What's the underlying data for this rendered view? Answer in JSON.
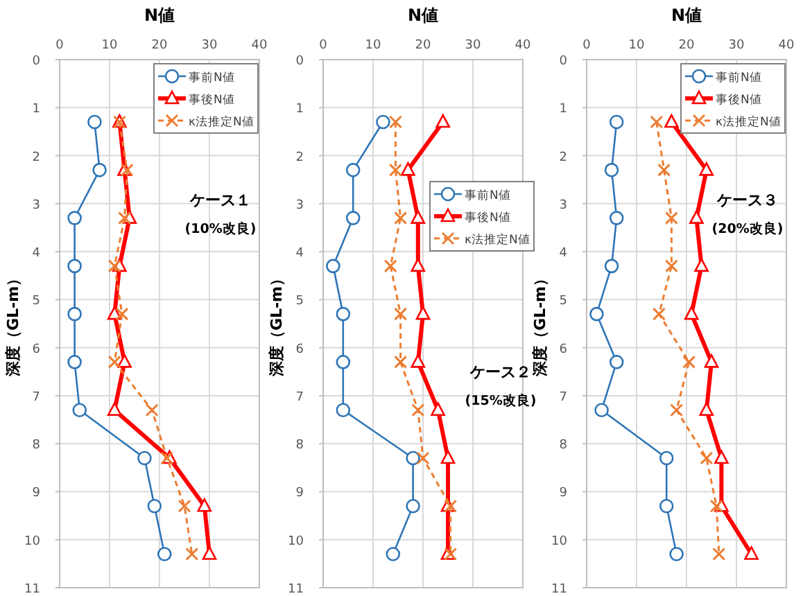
{
  "chart_data": [
    {
      "type": "line",
      "xlabel": "N値",
      "ylabel": "深度（GL-m）",
      "xlim": [
        0,
        40
      ],
      "xticks": [
        0,
        10,
        20,
        30,
        40
      ],
      "ylim": [
        11,
        0
      ],
      "yticks": [
        0,
        1,
        2,
        3,
        4,
        5,
        6,
        7,
        8,
        9,
        10,
        11
      ],
      "grid": true,
      "legend": "top right",
      "annotations": [
        "ケース１",
        "(10%改良)"
      ],
      "series": [
        {
          "name": "事前N値",
          "color": "#2e75b6",
          "marker": "circle",
          "line_style": "solid",
          "x": [
            7,
            8,
            3,
            3,
            3,
            3,
            4,
            17,
            19,
            21
          ],
          "values": [
            1.3,
            2.3,
            3.3,
            4.3,
            5.3,
            6.3,
            7.3,
            8.3,
            9.3,
            10.3
          ]
        },
        {
          "name": "事後N値",
          "color": "#ff0000",
          "marker": "triangle",
          "line_style": "solid",
          "x": [
            12,
            13,
            14,
            12,
            11,
            13,
            11,
            22,
            29,
            30
          ],
          "values": [
            1.3,
            2.3,
            3.3,
            4.3,
            5.3,
            6.3,
            7.3,
            8.3,
            9.3,
            10.3
          ]
        },
        {
          "name": "κ法推定N値",
          "color": "#ed7d31",
          "marker": "cross",
          "line_style": "dashed",
          "x": [
            12,
            13.5,
            13,
            11,
            12.5,
            11,
            18.5,
            21.5,
            25,
            26.5
          ],
          "values": [
            1.3,
            2.3,
            3.3,
            4.3,
            5.3,
            6.3,
            7.3,
            8.3,
            9.3,
            10.3
          ]
        }
      ]
    },
    {
      "type": "line",
      "xlabel": "N値",
      "ylabel": "深度（GL-m）",
      "xlim": [
        0,
        40
      ],
      "xticks": [
        0,
        10,
        20,
        30,
        40
      ],
      "ylim": [
        11,
        0
      ],
      "yticks": [
        0,
        1,
        2,
        3,
        4,
        5,
        6,
        7,
        8,
        9,
        10,
        11
      ],
      "grid": true,
      "legend": "right",
      "annotations": [
        "ケース２",
        "(15%改良)"
      ],
      "series": [
        {
          "name": "事前N値",
          "color": "#2e75b6",
          "marker": "circle",
          "line_style": "solid",
          "x": [
            12,
            6,
            6,
            2,
            4,
            4,
            4,
            18,
            18,
            14
          ],
          "values": [
            1.3,
            2.3,
            3.3,
            4.3,
            5.3,
            6.3,
            7.3,
            8.3,
            9.3,
            10.3
          ]
        },
        {
          "name": "事後N値",
          "color": "#ff0000",
          "marker": "triangle",
          "line_style": "solid",
          "x": [
            24,
            17,
            19,
            19,
            20,
            19,
            23,
            25,
            25,
            25
          ],
          "values": [
            1.3,
            2.3,
            3.3,
            4.3,
            5.3,
            6.3,
            7.3,
            8.3,
            9.3,
            10.3
          ]
        },
        {
          "name": "κ法推定N値",
          "color": "#ed7d31",
          "marker": "cross",
          "line_style": "dashed",
          "x": [
            14.5,
            14.5,
            15.5,
            13.5,
            15.5,
            15.5,
            19,
            20,
            25.5,
            25.5
          ],
          "values": [
            1.3,
            2.3,
            3.3,
            4.3,
            5.3,
            6.3,
            7.3,
            8.3,
            9.3,
            10.3
          ]
        }
      ]
    },
    {
      "type": "line",
      "xlabel": "N値",
      "ylabel": "深度（GL-m）",
      "xlim": [
        0,
        40
      ],
      "xticks": [
        0,
        10,
        20,
        30,
        40
      ],
      "ylim": [
        11,
        0
      ],
      "yticks": [
        0,
        1,
        2,
        3,
        4,
        5,
        6,
        7,
        8,
        9,
        10,
        11
      ],
      "grid": true,
      "legend": "top right",
      "annotations": [
        "ケース３",
        "(20%改良)"
      ],
      "series": [
        {
          "name": "事前N値",
          "color": "#2e75b6",
          "marker": "circle",
          "line_style": "solid",
          "x": [
            6,
            5,
            6,
            5,
            2,
            6,
            3,
            16,
            16,
            18
          ],
          "values": [
            1.3,
            2.3,
            3.3,
            4.3,
            5.3,
            6.3,
            7.3,
            8.3,
            9.3,
            10.3
          ]
        },
        {
          "name": "事後N値",
          "color": "#ff0000",
          "marker": "triangle",
          "line_style": "solid",
          "x": [
            17,
            24,
            22,
            23,
            21,
            25,
            24,
            27,
            27,
            33
          ],
          "values": [
            1.3,
            2.3,
            3.3,
            4.3,
            5.3,
            6.3,
            7.3,
            8.3,
            9.3,
            10.3
          ]
        },
        {
          "name": "κ法推定N値",
          "color": "#ed7d31",
          "marker": "cross",
          "line_style": "dashed",
          "x": [
            14,
            15.5,
            17,
            17,
            14.5,
            20.5,
            18,
            24,
            26,
            26.5
          ],
          "values": [
            1.3,
            2.3,
            3.3,
            4.3,
            5.3,
            6.3,
            7.3,
            8.3,
            9.3,
            10.3
          ]
        }
      ]
    }
  ]
}
